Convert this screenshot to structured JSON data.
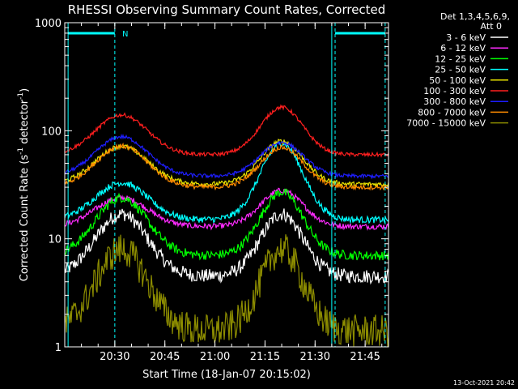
{
  "chart_data": {
    "type": "line",
    "title": "RHESSI Observing Summary Count Rates, Corrected",
    "xlabel": "Start Time (18-Jan-07 20:15:02)",
    "ylabel_main": "Corrected Count Rate (s",
    "ylabel_sup1": "-1",
    "ylabel_mid": " detector",
    "ylabel_sup2": "-1",
    "ylabel_end": ")",
    "yscale": "log",
    "ylim": [
      1,
      1000
    ],
    "xlim": [
      "20:15",
      "21:52"
    ],
    "x_ticks": [
      "20:30",
      "20:45",
      "21:00",
      "21:15",
      "21:30",
      "21:45"
    ],
    "y_ticks": [
      "1",
      "10",
      "100",
      "1000"
    ],
    "timestamp": "13-Oct-2021 20:42",
    "legend_header": [
      "Det 1,3,4,5,6,9,",
      "Att 0"
    ],
    "legend_position": "right",
    "annotations": [
      {
        "text": "N",
        "x": "20:32"
      }
    ],
    "markers": {
      "dashed_times": [
        "20:30",
        "21:36",
        "21:51"
      ],
      "solid_times": [
        "20:16",
        "21:35"
      ],
      "top_bars": [
        [
          "20:16",
          "20:30"
        ],
        [
          "21:36",
          "21:51"
        ]
      ]
    },
    "series": [
      {
        "name": "3 - 6 keV",
        "color": "#ffffff",
        "base": 4.5,
        "peak1": 17,
        "peak2": 17,
        "noise": 0.15
      },
      {
        "name": "6 - 12 keV",
        "color": "#ff2bff",
        "base": 13,
        "peak1": 24,
        "peak2": 28,
        "noise": 0.06
      },
      {
        "name": "12 - 25 keV",
        "color": "#00ff00",
        "base": 7,
        "peak1": 24,
        "peak2": 27,
        "noise": 0.1
      },
      {
        "name": "25 - 50 keV",
        "color": "#00ffff",
        "base": 15,
        "peak1": 33,
        "peak2": 77,
        "noise": 0.07
      },
      {
        "name": "50 - 100 keV",
        "color": "#e8e400",
        "base": 32,
        "peak1": 72,
        "peak2": 80,
        "noise": 0.05
      },
      {
        "name": "100 - 300 keV",
        "color": "#ff1f1f",
        "base": 60,
        "peak1": 140,
        "peak2": 165,
        "noise": 0.04
      },
      {
        "name": "300 - 800 keV",
        "color": "#1e1eff",
        "base": 38,
        "peak1": 88,
        "peak2": 78,
        "noise": 0.04
      },
      {
        "name": "800 - 7000 keV",
        "color": "#ff8c00",
        "base": 30,
        "peak1": 72,
        "peak2": 70,
        "noise": 0.05
      },
      {
        "name": "7000 - 15000 keV",
        "color": "#8c8c00",
        "base": 1.4,
        "peak1": 8,
        "peak2": 8,
        "noise": 0.35
      }
    ]
  }
}
